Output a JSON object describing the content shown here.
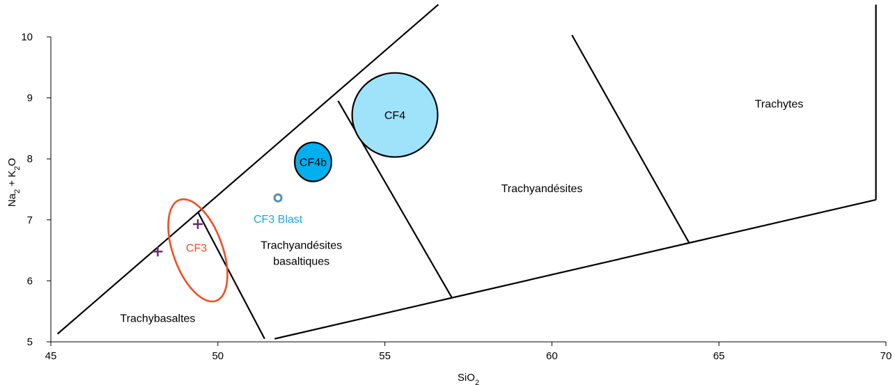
{
  "chart_data": {
    "type": "scatter",
    "title": "",
    "xlabel": "SiO",
    "xlabel_sub": "2",
    "ylabel_parts": [
      "Na",
      "2",
      " + K",
      "2",
      "O"
    ],
    "xlim": [
      45,
      70
    ],
    "ylim": [
      5,
      10
    ],
    "xticks": [
      45,
      50,
      55,
      60,
      65,
      70
    ],
    "yticks": [
      5,
      6,
      7,
      8,
      9,
      10
    ],
    "grid": false,
    "boundary_lines": [
      {
        "name": "trachybasalt-upper",
        "points": [
          [
            45.2,
            5.13
          ],
          [
            56.6,
            10.53
          ]
        ]
      },
      {
        "name": "basalt-trachy-divide",
        "points": [
          [
            49.4,
            7.13
          ],
          [
            51.4,
            5.05
          ]
        ]
      },
      {
        "name": "trachyandesite-basaltic-divide",
        "points": [
          [
            53.6,
            8.95
          ],
          [
            57.0,
            5.73
          ]
        ]
      },
      {
        "name": "trachyandesite-trachyte-divide",
        "points": [
          [
            60.6,
            10.03
          ],
          [
            64.1,
            6.63
          ]
        ]
      },
      {
        "name": "lower-boundary",
        "points": [
          [
            51.7,
            5.05
          ],
          [
            69.7,
            7.33
          ]
        ]
      },
      {
        "name": "trachyte-right",
        "points": [
          [
            69.7,
            7.33
          ],
          [
            69.7,
            10.53
          ]
        ]
      }
    ],
    "field_labels": [
      {
        "name": "trachybasaltes",
        "text": "Trachybasaltes",
        "x": 48.2,
        "y": 5.38
      },
      {
        "name": "trachyandesites-basaltiques-1",
        "text": "Trachyandésites",
        "x": 52.5,
        "y": 6.58
      },
      {
        "name": "trachyandesites-basaltiques-2",
        "text": "basaltiques",
        "x": 52.5,
        "y": 6.32
      },
      {
        "name": "trachyandesites",
        "text": "Trachyandésites",
        "x": 59.7,
        "y": 7.51
      },
      {
        "name": "trachytes",
        "text": "Trachytes",
        "x": 66.8,
        "y": 8.9
      }
    ],
    "samples": [
      {
        "name": "CF4",
        "label": "CF4",
        "type": "circle",
        "x": 55.3,
        "y": 8.72,
        "r_x": 1.28,
        "r_y": 0.69,
        "fill": "#9ee3fa",
        "stroke": "#000000",
        "label_color": "#000000"
      },
      {
        "name": "CF4b",
        "label": "CF4b",
        "type": "circle",
        "x": 52.85,
        "y": 7.95,
        "r_x": 0.55,
        "r_y": 0.32,
        "fill": "#00b0ee",
        "stroke": "#000000",
        "label_color": "#000000"
      },
      {
        "name": "CF3 Blast",
        "label": "CF3 Blast",
        "type": "point",
        "x": 51.8,
        "y": 7.36,
        "fill": "#ffffff",
        "stroke": "#5a8bb0",
        "label_color": "#1ea6e0",
        "label_x": 51.8,
        "label_y": 7.01
      },
      {
        "name": "CF3",
        "label": "CF3",
        "type": "ellipse",
        "x": 49.4,
        "y": 6.5,
        "r_x": 0.9,
        "r_y": 0.88,
        "rotation": -20,
        "fill": "none",
        "stroke": "#f04e23",
        "label_color": "#f04e23"
      }
    ],
    "points": [
      {
        "name": "cross-1",
        "x": 48.2,
        "y": 6.48,
        "marker": "+",
        "color": "#6a2a6e"
      },
      {
        "name": "cross-2",
        "x": 49.4,
        "y": 6.93,
        "marker": "+",
        "color": "#6a2a6e"
      }
    ]
  }
}
